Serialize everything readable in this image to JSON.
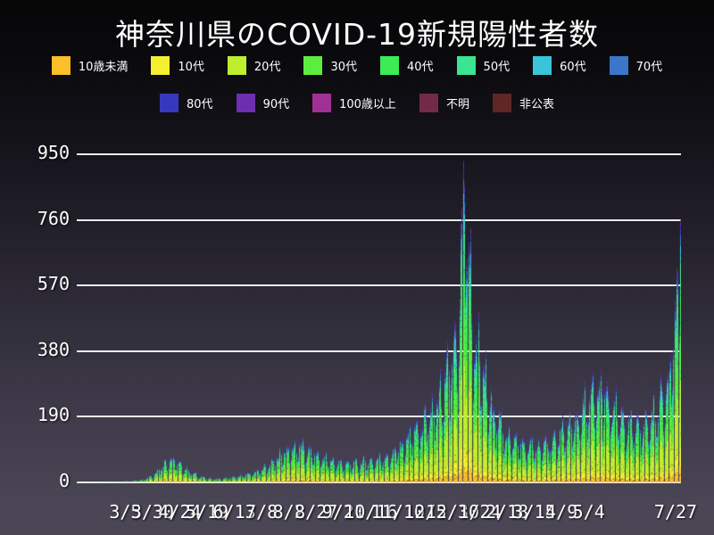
{
  "title": "神奈川県のCOVID-19新規陽性者数",
  "legend": {
    "rows": [
      [
        0,
        1,
        2,
        3,
        4,
        5,
        6,
        7
      ],
      [
        8,
        9,
        10,
        11,
        12
      ]
    ]
  },
  "chart_data": {
    "type": "stacked_bar",
    "title": "神奈川県のCOVID-19新規陽性者数",
    "ylabel": "",
    "xlabel": "",
    "ylim": [
      0,
      981
    ],
    "grid": true,
    "grid_color": "#ebebf2",
    "background_top": "#060607",
    "background_bottom": "#4a4656",
    "y_ticks": [
      0,
      190,
      380,
      570,
      760,
      950
    ],
    "days_total": 554,
    "x_ticks": [
      {
        "day": 44,
        "label": "3/5"
      },
      {
        "day": 69,
        "label": "3/30"
      },
      {
        "day": 94,
        "label": "4/24"
      },
      {
        "day": 119,
        "label": "5/19"
      },
      {
        "day": 144,
        "label": "6/13"
      },
      {
        "day": 169,
        "label": "7/8"
      },
      {
        "day": 194,
        "label": "8/2"
      },
      {
        "day": 219,
        "label": "8/27"
      },
      {
        "day": 244,
        "label": "9/21"
      },
      {
        "day": 269,
        "label": "10/16"
      },
      {
        "day": 294,
        "label": "11/10"
      },
      {
        "day": 319,
        "label": "12/5"
      },
      {
        "day": 344,
        "label": "12/30"
      },
      {
        "day": 369,
        "label": "1/24"
      },
      {
        "day": 394,
        "label": "2/18"
      },
      {
        "day": 419,
        "label": "3/15"
      },
      {
        "day": 444,
        "label": "4/9"
      },
      {
        "day": 469,
        "label": "5/4"
      },
      {
        "day": 553,
        "label": "7/27"
      }
    ],
    "series": [
      {
        "name": "10歳未満",
        "color": "#fcbe2a",
        "share": 0.05
      },
      {
        "name": "10代",
        "color": "#f4ef2f",
        "share": 0.08
      },
      {
        "name": "20代",
        "color": "#bfee2e",
        "share": 0.265
      },
      {
        "name": "30代",
        "color": "#5dee3d",
        "share": 0.17
      },
      {
        "name": "40代",
        "color": "#3cec55",
        "share": 0.15
      },
      {
        "name": "50代",
        "color": "#3ae490",
        "share": 0.125
      },
      {
        "name": "60代",
        "color": "#3ac4da",
        "share": 0.06
      },
      {
        "name": "70代",
        "color": "#3b76c9",
        "share": 0.043
      },
      {
        "name": "80代",
        "color": "#3639bd",
        "share": 0.033
      },
      {
        "name": "90代",
        "color": "#6d2fae",
        "share": 0.014
      },
      {
        "name": "100歳以上",
        "color": "#a03194",
        "share": 0.002
      },
      {
        "name": "不明",
        "color": "#732a49",
        "share": 0.006
      },
      {
        "name": "非公表",
        "color": "#602525",
        "share": 0.002
      }
    ],
    "envelope_total": [
      [
        0,
        2
      ],
      [
        2,
        0
      ],
      [
        25,
        1
      ],
      [
        40,
        2
      ],
      [
        50,
        4
      ],
      [
        60,
        8
      ],
      [
        70,
        22
      ],
      [
        80,
        55
      ],
      [
        85,
        68
      ],
      [
        90,
        58
      ],
      [
        100,
        38
      ],
      [
        110,
        20
      ],
      [
        120,
        11
      ],
      [
        130,
        10
      ],
      [
        140,
        13
      ],
      [
        150,
        18
      ],
      [
        160,
        26
      ],
      [
        170,
        38
      ],
      [
        180,
        58
      ],
      [
        190,
        88
      ],
      [
        200,
        98
      ],
      [
        205,
        102
      ],
      [
        210,
        88
      ],
      [
        220,
        76
      ],
      [
        230,
        64
      ],
      [
        240,
        56
      ],
      [
        250,
        50
      ],
      [
        260,
        56
      ],
      [
        270,
        62
      ],
      [
        280,
        68
      ],
      [
        290,
        82
      ],
      [
        300,
        112
      ],
      [
        310,
        150
      ],
      [
        320,
        172
      ],
      [
        330,
        212
      ],
      [
        340,
        300
      ],
      [
        345,
        380
      ],
      [
        350,
        450
      ],
      [
        353,
        700
      ],
      [
        355,
        860
      ],
      [
        358,
        700
      ],
      [
        362,
        480
      ],
      [
        366,
        380
      ],
      [
        372,
        300
      ],
      [
        380,
        220
      ],
      [
        390,
        150
      ],
      [
        400,
        120
      ],
      [
        410,
        105
      ],
      [
        420,
        100
      ],
      [
        430,
        110
      ],
      [
        440,
        125
      ],
      [
        450,
        150
      ],
      [
        460,
        185
      ],
      [
        470,
        230
      ],
      [
        478,
        255
      ],
      [
        490,
        215
      ],
      [
        500,
        175
      ],
      [
        510,
        150
      ],
      [
        520,
        165
      ],
      [
        530,
        195
      ],
      [
        540,
        275
      ],
      [
        547,
        400
      ],
      [
        551,
        520
      ],
      [
        553,
        760
      ]
    ],
    "weekly_pattern": [
      0.78,
      1.02,
      1.12,
      1.18,
      1.25,
      1.02,
      0.63
    ],
    "jitter": {
      "base": 0.85,
      "amp": 0.3
    },
    "final_day_value": 760
  }
}
